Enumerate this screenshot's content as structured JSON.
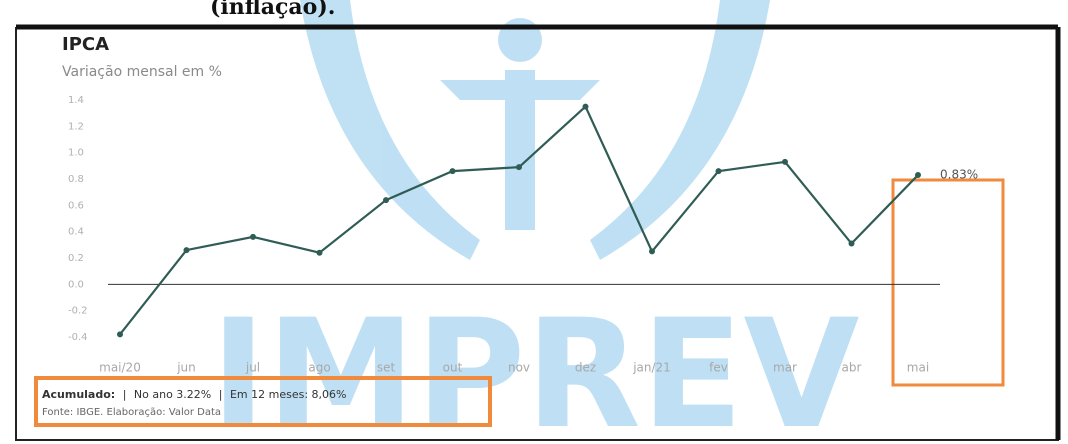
{
  "caption": "(inflação).",
  "watermark": "IMPREV",
  "chart_data": {
    "type": "line",
    "title": "IPCA",
    "subtitle": "Variação mensal em %",
    "categories": [
      "mai/20",
      "jun",
      "jul",
      "ago",
      "set",
      "out",
      "nov",
      "dez",
      "jan/21",
      "fev",
      "mar",
      "abr",
      "mai"
    ],
    "series": [
      {
        "name": "IPCA",
        "color": "#2f5d55",
        "values": [
          -0.38,
          0.26,
          0.36,
          0.24,
          0.64,
          0.86,
          0.89,
          1.35,
          0.25,
          0.86,
          0.93,
          0.31,
          0.83
        ],
        "value_labels": [
          null,
          null,
          null,
          null,
          null,
          null,
          null,
          null,
          null,
          null,
          null,
          null,
          "0.83%"
        ]
      }
    ],
    "ylim": [
      -0.4,
      1.4
    ],
    "yticks": [
      1.4,
      1.2,
      {
        "value": 1,
        "label": "1.0"
      },
      0.8,
      0.6,
      0.4,
      0.2,
      {
        "value": 0,
        "label": "0.0"
      },
      -0.2,
      -0.4
    ],
    "grid": false,
    "footer": {
      "label": "Acumulado:",
      "year": "No ano 3.22%",
      "twelve": "Em 12 meses: 8,06%",
      "source": "Fonte: IBGE. Elaboração: Valor Data"
    }
  }
}
